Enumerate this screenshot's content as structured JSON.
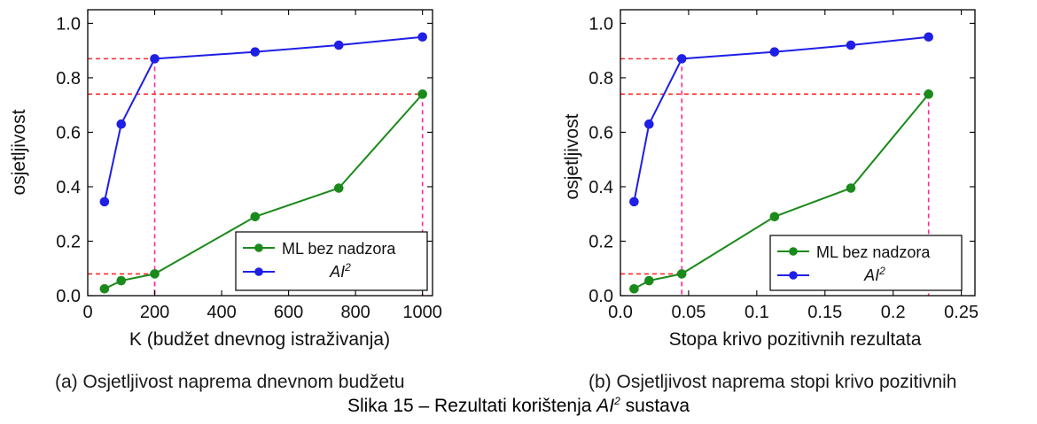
{
  "chart_data": [
    {
      "type": "line",
      "xlabel": "K (budžet dnevnog istraživanja)",
      "ylabel": "osjetljivost",
      "xlim": [
        0,
        1030
      ],
      "ylim": [
        0,
        1.05
      ],
      "xticks": [
        0,
        200,
        400,
        600,
        800,
        1000
      ],
      "xtick_labels": [
        "0",
        "200",
        "400",
        "600",
        "800",
        "1000"
      ],
      "yticks": [
        0.0,
        0.2,
        0.4,
        0.6,
        0.8,
        1.0
      ],
      "ytick_labels": [
        "0.0",
        "0.2",
        "0.4",
        "0.6",
        "0.8",
        "1.0"
      ],
      "grid": false,
      "legend_position": "bottom-right",
      "series": [
        {
          "name": "ML bez nadzora",
          "color": "#1a8a1a",
          "x": [
            50,
            100,
            200,
            500,
            750,
            1000
          ],
          "y": [
            0.025,
            0.055,
            0.08,
            0.29,
            0.395,
            0.74
          ]
        },
        {
          "name": "AI2",
          "color": "#1f1fe6",
          "x": [
            50,
            100,
            200,
            500,
            750,
            1000
          ],
          "y": [
            0.345,
            0.63,
            0.87,
            0.895,
            0.92,
            0.95
          ]
        }
      ],
      "reference_lines": [
        {
          "x": 200,
          "y": 0.87
        },
        {
          "x": 200,
          "y": 0.08
        },
        {
          "x": 1000,
          "y": 0.74
        }
      ],
      "caption": "(a) Osjetljivost naprema dnevnom budžetu"
    },
    {
      "type": "line",
      "xlabel": "Stopa krivo pozitivnih rezultata",
      "ylabel": "osjetljivost",
      "xlim": [
        0,
        0.26
      ],
      "ylim": [
        0,
        1.05
      ],
      "xticks": [
        0.0,
        0.05,
        0.1,
        0.15,
        0.2,
        0.25
      ],
      "xtick_labels": [
        "0.0",
        "0.05",
        "0.1",
        "0.15",
        "0.2",
        "0.25"
      ],
      "yticks": [
        0.0,
        0.2,
        0.4,
        0.6,
        0.8,
        1.0
      ],
      "ytick_labels": [
        "0.0",
        "0.2",
        "0.4",
        "0.6",
        "0.8",
        "1.0"
      ],
      "grid": false,
      "legend_position": "bottom-right",
      "series": [
        {
          "name": "ML bez nadzora",
          "color": "#1a8a1a",
          "x": [
            0.01,
            0.021,
            0.045,
            0.113,
            0.169,
            0.226
          ],
          "y": [
            0.025,
            0.055,
            0.08,
            0.29,
            0.395,
            0.74
          ]
        },
        {
          "name": "AI2",
          "color": "#1f1fe6",
          "x": [
            0.01,
            0.021,
            0.045,
            0.113,
            0.169,
            0.226
          ],
          "y": [
            0.345,
            0.63,
            0.87,
            0.895,
            0.92,
            0.95
          ]
        }
      ],
      "reference_lines": [
        {
          "x": 0.045,
          "y": 0.87
        },
        {
          "x": 0.045,
          "y": 0.08
        },
        {
          "x": 0.226,
          "y": 0.74
        }
      ],
      "caption": "(b) Osjetljivost naprema stopi krivo pozitivnih"
    }
  ],
  "main_caption": {
    "prefix": "Slika 15 – Rezultati korištenja ",
    "ai": "AI",
    "sup": "2",
    "suffix": " sustava"
  },
  "colors": {
    "ml": "#1a8a1a",
    "ai2": "#1f1fe6",
    "ref": "#ff2a2a",
    "ref_vertical": "#ff2a9a"
  }
}
